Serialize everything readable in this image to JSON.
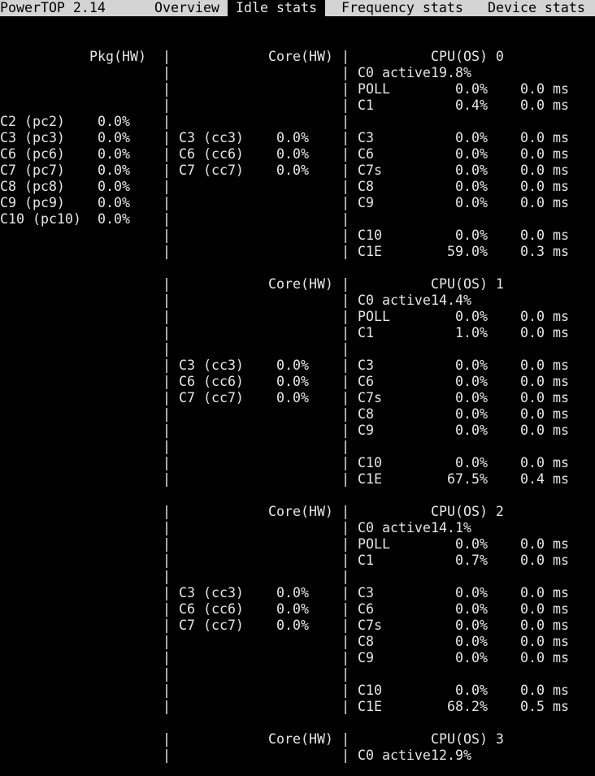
{
  "terminal": {
    "pipe": "|",
    "colors": {
      "background": "#000000",
      "foreground": "#e6e6e6",
      "tab_bar_background": "#d4d4d4",
      "tab_bar_foreground": "#000000",
      "active_tab_background": "#000000",
      "active_tab_foreground": "#e6e6e6"
    }
  },
  "tab_bar": {
    "app_title": "PowerTOP 2.14",
    "tabs": [
      {
        "label": "Overview",
        "active": false
      },
      {
        "label": "Idle stats",
        "active": true
      },
      {
        "label": "Frequency stats",
        "active": false
      },
      {
        "label": "Device stats",
        "active": false
      }
    ]
  },
  "headers": {
    "pkg": "Pkg(HW)",
    "core": "Core(HW)"
  },
  "pkg_states": [
    {
      "label": "C2 (pc2)",
      "value": "0.0%"
    },
    {
      "label": "C3 (pc3)",
      "value": "0.0%"
    },
    {
      "label": "C6 (pc6)",
      "value": "0.0%"
    },
    {
      "label": "C7 (pc7)",
      "value": "0.0%"
    },
    {
      "label": "C8 (pc8)",
      "value": "0.0%"
    },
    {
      "label": "C9 (pc9)",
      "value": "0.0%"
    },
    {
      "label": "C10 (pc10)",
      "value": "0.0%"
    }
  ],
  "cpus": [
    {
      "title": "CPU(OS) 0",
      "c0_active": {
        "label": "C0 active",
        "value": "19.8%"
      },
      "core_states": [
        {
          "label": "C3 (cc3)",
          "value": "0.0%"
        },
        {
          "label": "C6 (cc6)",
          "value": "0.0%"
        },
        {
          "label": "C7 (cc7)",
          "value": "0.0%"
        }
      ],
      "states": [
        {
          "label": "POLL",
          "pct": "0.0%",
          "time": "0.0 ms"
        },
        {
          "label": "C1",
          "pct": "0.4%",
          "time": "0.0 ms"
        },
        {
          "label": "C3",
          "pct": "0.0%",
          "time": "0.0 ms"
        },
        {
          "label": "C6",
          "pct": "0.0%",
          "time": "0.0 ms"
        },
        {
          "label": "C7s",
          "pct": "0.0%",
          "time": "0.0 ms"
        },
        {
          "label": "C8",
          "pct": "0.0%",
          "time": "0.0 ms"
        },
        {
          "label": "C9",
          "pct": "0.0%",
          "time": "0.0 ms"
        },
        {
          "label": "C10",
          "pct": "0.0%",
          "time": "0.0 ms"
        },
        {
          "label": "C1E",
          "pct": "59.0%",
          "time": "0.3 ms"
        }
      ]
    },
    {
      "title": "CPU(OS) 1",
      "c0_active": {
        "label": "C0 active",
        "value": "14.4%"
      },
      "core_states": [
        {
          "label": "C3 (cc3)",
          "value": "0.0%"
        },
        {
          "label": "C6 (cc6)",
          "value": "0.0%"
        },
        {
          "label": "C7 (cc7)",
          "value": "0.0%"
        }
      ],
      "states": [
        {
          "label": "POLL",
          "pct": "0.0%",
          "time": "0.0 ms"
        },
        {
          "label": "C1",
          "pct": "1.0%",
          "time": "0.0 ms"
        },
        {
          "label": "C3",
          "pct": "0.0%",
          "time": "0.0 ms"
        },
        {
          "label": "C6",
          "pct": "0.0%",
          "time": "0.0 ms"
        },
        {
          "label": "C7s",
          "pct": "0.0%",
          "time": "0.0 ms"
        },
        {
          "label": "C8",
          "pct": "0.0%",
          "time": "0.0 ms"
        },
        {
          "label": "C9",
          "pct": "0.0%",
          "time": "0.0 ms"
        },
        {
          "label": "C10",
          "pct": "0.0%",
          "time": "0.0 ms"
        },
        {
          "label": "C1E",
          "pct": "67.5%",
          "time": "0.4 ms"
        }
      ]
    },
    {
      "title": "CPU(OS) 2",
      "c0_active": {
        "label": "C0 active",
        "value": "14.1%"
      },
      "core_states": [
        {
          "label": "C3 (cc3)",
          "value": "0.0%"
        },
        {
          "label": "C6 (cc6)",
          "value": "0.0%"
        },
        {
          "label": "C7 (cc7)",
          "value": "0.0%"
        }
      ],
      "states": [
        {
          "label": "POLL",
          "pct": "0.0%",
          "time": "0.0 ms"
        },
        {
          "label": "C1",
          "pct": "0.7%",
          "time": "0.0 ms"
        },
        {
          "label": "C3",
          "pct": "0.0%",
          "time": "0.0 ms"
        },
        {
          "label": "C6",
          "pct": "0.0%",
          "time": "0.0 ms"
        },
        {
          "label": "C7s",
          "pct": "0.0%",
          "time": "0.0 ms"
        },
        {
          "label": "C8",
          "pct": "0.0%",
          "time": "0.0 ms"
        },
        {
          "label": "C9",
          "pct": "0.0%",
          "time": "0.0 ms"
        },
        {
          "label": "C10",
          "pct": "0.0%",
          "time": "0.0 ms"
        },
        {
          "label": "C1E",
          "pct": "68.2%",
          "time": "0.5 ms"
        }
      ]
    },
    {
      "title": "CPU(OS) 3",
      "c0_active": {
        "label": "C0 active",
        "value": "12.9%"
      },
      "core_states": [],
      "states": []
    }
  ]
}
